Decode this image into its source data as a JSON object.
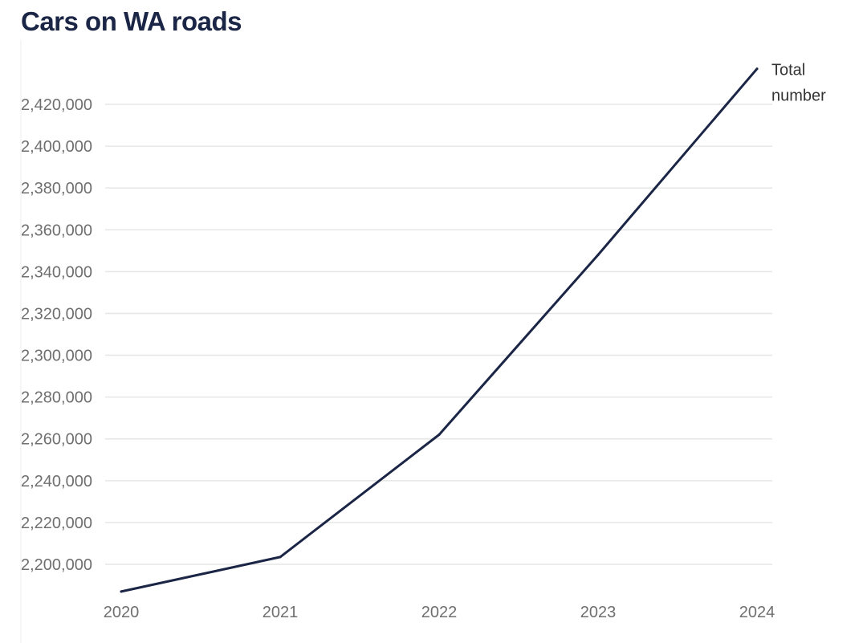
{
  "chart_data": {
    "type": "line",
    "title": "Cars on WA roads",
    "xlabel": "",
    "ylabel": "",
    "x": [
      "2020",
      "2021",
      "2022",
      "2023",
      "2024"
    ],
    "series": [
      {
        "name": "Total number",
        "name_lines": [
          "Total",
          "number"
        ],
        "values": [
          2187000,
          2203500,
          2262000,
          2348000,
          2437000
        ]
      }
    ],
    "y_ticks": [
      2200000,
      2220000,
      2240000,
      2260000,
      2280000,
      2300000,
      2320000,
      2340000,
      2360000,
      2380000,
      2400000,
      2420000
    ],
    "y_tick_labels": [
      "2,200,000",
      "2,220,000",
      "2,240,000",
      "2,260,000",
      "2,280,000",
      "2,300,000",
      "2,320,000",
      "2,340,000",
      "2,360,000",
      "2,380,000",
      "2,400,000",
      "2,420,000"
    ],
    "ylim": [
      2185000,
      2445000
    ],
    "grid": true,
    "legend": "inline label at end of line",
    "colors": {
      "line": "#1b2545",
      "grid": "#e6e6e6",
      "title": "#1b2545",
      "tick": "#6f6f6f"
    }
  }
}
